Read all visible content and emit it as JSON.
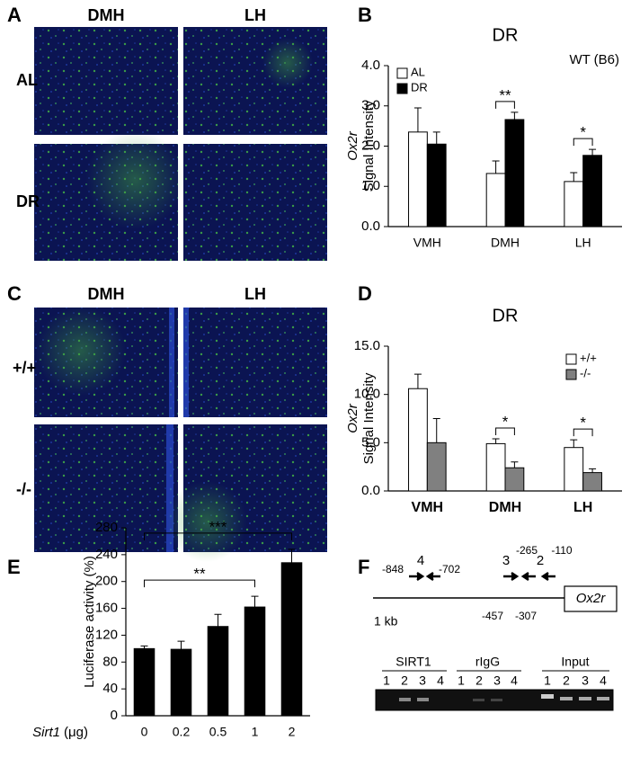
{
  "panel_letters": [
    "A",
    "B",
    "C",
    "D",
    "E",
    "F"
  ],
  "panel_a": {
    "columns": [
      "DMH",
      "LH"
    ],
    "rows": [
      "AL",
      "DR"
    ]
  },
  "panel_c": {
    "columns": [
      "DMH",
      "LH"
    ],
    "rows": [
      "+/+",
      "-/-"
    ]
  },
  "chart_data": [
    {
      "type": "bar",
      "title": "DR",
      "annotation": "WT (B6)",
      "y_label": [
        "Ox2r",
        "Signal Intensity"
      ],
      "categories": [
        "VMH",
        "DMH",
        "LH"
      ],
      "series": [
        {
          "name": "AL",
          "color": "#ffffff",
          "values": [
            2.35,
            1.32,
            1.12
          ],
          "errors": [
            0.6,
            0.31,
            0.22
          ]
        },
        {
          "name": "DR",
          "color": "#000000",
          "values": [
            2.05,
            2.66,
            1.77
          ],
          "errors": [
            0.3,
            0.18,
            0.15
          ]
        }
      ],
      "ylim": [
        0,
        4
      ],
      "yticks": [
        {
          "value": 0,
          "label": "0.0"
        },
        {
          "value": 1,
          "label": "1.0"
        },
        {
          "value": 2,
          "label": "2.0"
        },
        {
          "value": 3,
          "label": "3.0"
        },
        {
          "value": 4,
          "label": "4.0"
        }
      ],
      "significance": [
        {
          "label": "**",
          "category": "DMH"
        },
        {
          "label": "*",
          "category": "LH"
        }
      ],
      "legend": "upper left"
    },
    {
      "type": "bar",
      "title": "DR",
      "y_label": [
        "Ox2r",
        "Signal Intensity"
      ],
      "categories": [
        "VMH",
        "DMH",
        "LH"
      ],
      "series": [
        {
          "name": "+/+",
          "color": "#ffffff",
          "values": [
            10.6,
            4.9,
            4.5
          ],
          "errors": [
            1.5,
            0.5,
            0.8
          ]
        },
        {
          "name": "-/-",
          "color": "#808080",
          "values": [
            5.0,
            2.4,
            1.9
          ],
          "errors": [
            2.5,
            0.6,
            0.4
          ]
        }
      ],
      "ylim": [
        0,
        15
      ],
      "yticks": [
        {
          "value": 0,
          "label": "0.0"
        },
        {
          "value": 5,
          "label": "5.0"
        },
        {
          "value": 10,
          "label": "10.0"
        },
        {
          "value": 15,
          "label": "15.0"
        }
      ],
      "significance": [
        {
          "label": "*",
          "category": "DMH"
        },
        {
          "label": "*",
          "category": "LH"
        }
      ],
      "legend": "upper right"
    },
    {
      "type": "bar",
      "y_label": [
        "Luciferase activity (%)"
      ],
      "x_label": [
        "Sirt1",
        "(μg)"
      ],
      "categories": [
        "0",
        "0.2",
        "0.5",
        "1",
        "2"
      ],
      "series": [
        {
          "color": "#000000",
          "values": [
            100,
            99,
            133,
            162,
            228
          ],
          "errors": [
            4,
            12,
            18,
            16,
            20
          ]
        }
      ],
      "ylim": [
        0,
        280
      ],
      "yticks": [
        0,
        40,
        80,
        120,
        160,
        200,
        240,
        280
      ],
      "significance": [
        {
          "label": "***",
          "from": "0",
          "to": "2"
        },
        {
          "label": "**",
          "from": "0",
          "to": "1"
        }
      ]
    }
  ],
  "panel_f": {
    "positions": [
      "-848",
      "-702",
      "-457",
      "-307",
      "-265",
      "-110"
    ],
    "primers": [
      "4",
      "3",
      "2"
    ],
    "scale": "1 kb",
    "gene": "Ox2r",
    "gel": [
      {
        "name": "SIRT1",
        "lanes": [
          "1",
          "2",
          "3",
          "4"
        ]
      },
      {
        "name": "rIgG",
        "lanes": [
          "1",
          "2",
          "3",
          "4"
        ]
      },
      {
        "name": "Input",
        "lanes": [
          "1",
          "2",
          "3",
          "4"
        ]
      }
    ]
  }
}
